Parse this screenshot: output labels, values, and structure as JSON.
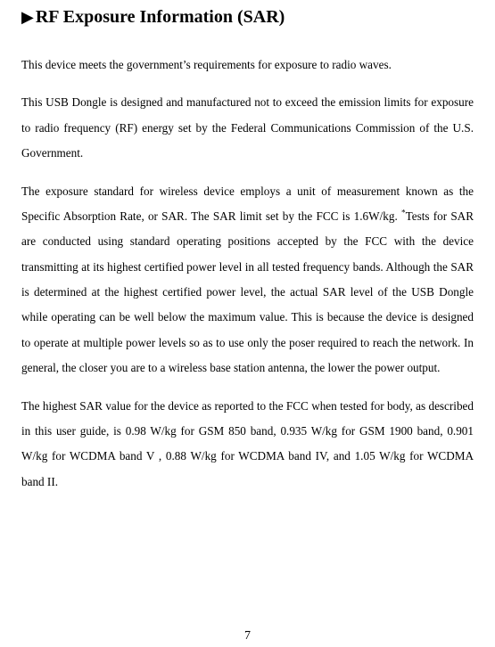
{
  "heading": "RF Exposure Information (SAR)",
  "para1": "This device meets the government’s requirements for exposure to radio waves.",
  "para2": "This USB Dongle is designed and manufactured not to exceed the emission limits for exposure to radio frequency (RF) energy set by the Federal Communications Commission of the U.S. Government.",
  "para3_a": "The exposure standard for wireless device employs a unit of measurement known as the Specific Absorption Rate, or SAR.   The SAR limit set by the FCC is 1.6W/kg.   ",
  "para3_sup": "*",
  "para3_b": "Tests for SAR are conducted using standard operating positions accepted by the FCC with the device transmitting at its highest certified power level in all tested frequency bands. Although the SAR is determined at the highest certified power level, the actual SAR level of the USB Dongle while operating can be well below the maximum value.   This is because the device is designed to operate at multiple power levels so as to use only the poser required to reach the network.   In general, the closer you are to a wireless base station antenna, the lower the power output.",
  "para4": "The highest SAR value for the device as reported to the FCC when tested for body, as described in this user guide, is 0.98 W/kg for GSM 850 band, 0.935 W/kg for GSM 1900 band, 0.901 W/kg for WCDMA band V , 0.88 W/kg for WCDMA band IV, and 1.05 W/kg for WCDMA band II.",
  "pagenum": "7"
}
